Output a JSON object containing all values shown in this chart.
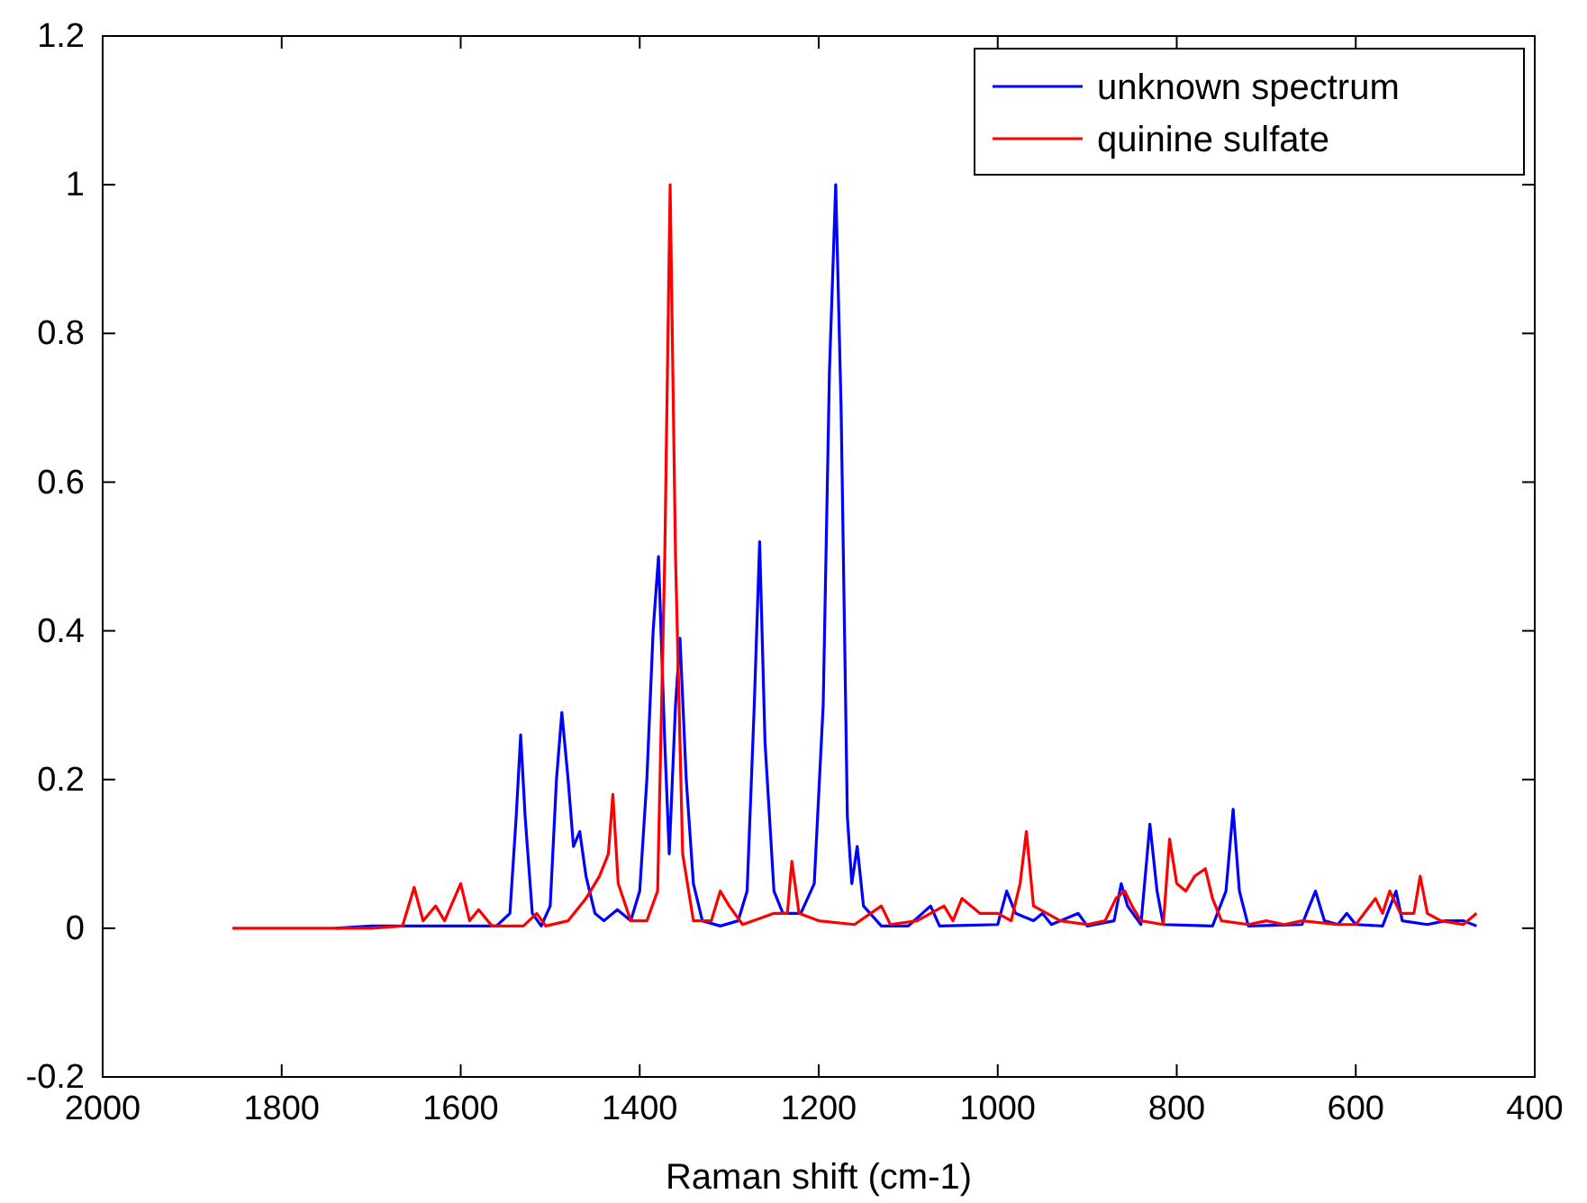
{
  "chart_data": {
    "type": "line",
    "xlabel": "Raman shift (cm-1)",
    "xlim": [
      2000,
      400
    ],
    "xticks": [
      2000,
      1800,
      1600,
      1400,
      1200,
      1000,
      800,
      600,
      400
    ],
    "ylim": [
      -0.2,
      1.2
    ],
    "yticks": [
      -0.2,
      0,
      0.2,
      0.4,
      0.6,
      0.8,
      1,
      1.2
    ],
    "grid": false,
    "legend": "top right",
    "line_style": "solid",
    "marker": "none",
    "series": [
      {
        "name": "unknown spectrum",
        "color": "#0000ff",
        "x": [
          1740,
          1700,
          1600,
          1560,
          1545,
          1538,
          1533,
          1528,
          1520,
          1510,
          1500,
          1493,
          1487,
          1480,
          1474,
          1467,
          1460,
          1450,
          1440,
          1425,
          1410,
          1400,
          1392,
          1385,
          1379,
          1372,
          1367,
          1360,
          1355,
          1348,
          1340,
          1330,
          1310,
          1290,
          1280,
          1272,
          1266,
          1260,
          1250,
          1240,
          1220,
          1205,
          1195,
          1188,
          1181,
          1175,
          1168,
          1163,
          1157,
          1150,
          1130,
          1100,
          1075,
          1065,
          1000,
          990,
          980,
          960,
          950,
          940,
          910,
          900,
          870,
          862,
          855,
          840,
          830,
          822,
          815,
          760,
          745,
          737,
          730,
          720,
          660,
          645,
          635,
          620,
          610,
          600,
          570,
          555,
          548,
          520,
          500,
          480,
          465
        ],
        "values": [
          0,
          0.003,
          0.003,
          0.003,
          0.02,
          0.15,
          0.26,
          0.15,
          0.02,
          0.003,
          0.03,
          0.2,
          0.29,
          0.2,
          0.11,
          0.13,
          0.07,
          0.02,
          0.01,
          0.025,
          0.01,
          0.05,
          0.2,
          0.4,
          0.5,
          0.25,
          0.1,
          0.3,
          0.39,
          0.2,
          0.06,
          0.01,
          0.003,
          0.01,
          0.05,
          0.3,
          0.52,
          0.25,
          0.05,
          0.02,
          0.02,
          0.06,
          0.3,
          0.75,
          1.0,
          0.7,
          0.15,
          0.06,
          0.11,
          0.03,
          0.003,
          0.003,
          0.03,
          0.003,
          0.005,
          0.05,
          0.02,
          0.01,
          0.02,
          0.005,
          0.02,
          0.003,
          0.01,
          0.06,
          0.03,
          0.005,
          0.14,
          0.05,
          0.005,
          0.003,
          0.05,
          0.16,
          0.05,
          0.003,
          0.005,
          0.05,
          0.01,
          0.005,
          0.02,
          0.005,
          0.003,
          0.05,
          0.01,
          0.005,
          0.01,
          0.01,
          0.003
        ]
      },
      {
        "name": "quinine sulfate",
        "color": "#ff0000",
        "x": [
          1855,
          1700,
          1665,
          1652,
          1642,
          1628,
          1618,
          1600,
          1590,
          1580,
          1565,
          1530,
          1515,
          1505,
          1480,
          1460,
          1445,
          1435,
          1430,
          1424,
          1410,
          1392,
          1380,
          1372,
          1366,
          1360,
          1352,
          1340,
          1320,
          1310,
          1300,
          1285,
          1250,
          1235,
          1230,
          1222,
          1200,
          1160,
          1130,
          1120,
          1090,
          1060,
          1050,
          1040,
          1020,
          1000,
          985,
          975,
          968,
          960,
          945,
          930,
          900,
          880,
          868,
          858,
          850,
          840,
          815,
          808,
          800,
          790,
          780,
          768,
          760,
          750,
          720,
          700,
          680,
          660,
          620,
          600,
          578,
          570,
          562,
          550,
          535,
          528,
          520,
          505,
          480,
          465
        ],
        "values": [
          0,
          0,
          0.003,
          0.055,
          0.01,
          0.03,
          0.01,
          0.06,
          0.01,
          0.025,
          0.003,
          0.003,
          0.02,
          0.003,
          0.01,
          0.04,
          0.07,
          0.1,
          0.18,
          0.06,
          0.01,
          0.01,
          0.05,
          0.5,
          1.0,
          0.5,
          0.1,
          0.01,
          0.01,
          0.05,
          0.03,
          0.005,
          0.02,
          0.02,
          0.09,
          0.02,
          0.01,
          0.005,
          0.03,
          0.005,
          0.01,
          0.03,
          0.01,
          0.04,
          0.02,
          0.02,
          0.01,
          0.06,
          0.13,
          0.03,
          0.02,
          0.01,
          0.005,
          0.01,
          0.04,
          0.05,
          0.03,
          0.01,
          0.005,
          0.12,
          0.06,
          0.05,
          0.07,
          0.08,
          0.04,
          0.01,
          0.005,
          0.01,
          0.005,
          0.01,
          0.005,
          0.005,
          0.04,
          0.02,
          0.05,
          0.02,
          0.02,
          0.07,
          0.02,
          0.01,
          0.005,
          0.02
        ]
      }
    ]
  }
}
